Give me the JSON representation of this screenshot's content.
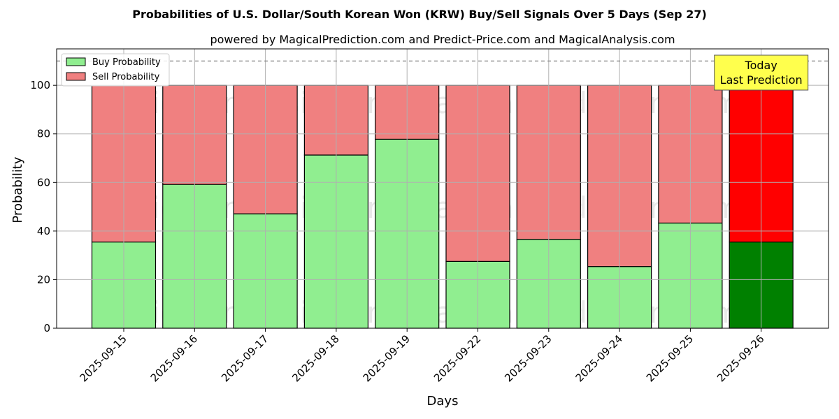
{
  "chart_data": {
    "type": "bar",
    "stacked": true,
    "title": "Probabilities of U.S. Dollar/South Korean Won (KRW) Buy/Sell Signals Over 5 Days (Sep 27)",
    "subtitle": "powered by MagicalPrediction.com and Predict-Price.com and MagicalAnalysis.com",
    "xlabel": "Days",
    "ylabel": "Probability",
    "ylim": [
      0,
      115
    ],
    "yticks": [
      0,
      20,
      40,
      60,
      80,
      100
    ],
    "ytick_labels": [
      "0",
      "20",
      "40",
      "60",
      "80",
      "100"
    ],
    "reference_line": 110,
    "grid": true,
    "legend_position": "top-left",
    "categories": [
      "2025-09-15",
      "2025-09-16",
      "2025-09-17",
      "2025-09-18",
      "2025-09-19",
      "2025-09-22",
      "2025-09-23",
      "2025-09-24",
      "2025-09-25",
      "2025-09-26"
    ],
    "series": [
      {
        "name": "Buy Probability",
        "color": "#90ee90",
        "highlight_color": "#008000",
        "values": [
          35.5,
          59.2,
          47.1,
          71.3,
          77.8,
          27.5,
          36.6,
          25.4,
          43.3,
          35.5
        ]
      },
      {
        "name": "Sell Probability",
        "color": "#f08080",
        "highlight_color": "#ff0000",
        "values": [
          64.5,
          40.8,
          52.9,
          28.7,
          22.2,
          72.5,
          63.4,
          74.6,
          56.7,
          64.5
        ]
      }
    ],
    "highlight_category": "2025-09-26",
    "annotation": {
      "lines": [
        "Today",
        "Last Prediction"
      ],
      "color": "#ffff4d"
    },
    "watermarks": [
      "MagicalAnalysis.com",
      "MagicalPrediction.com"
    ]
  }
}
